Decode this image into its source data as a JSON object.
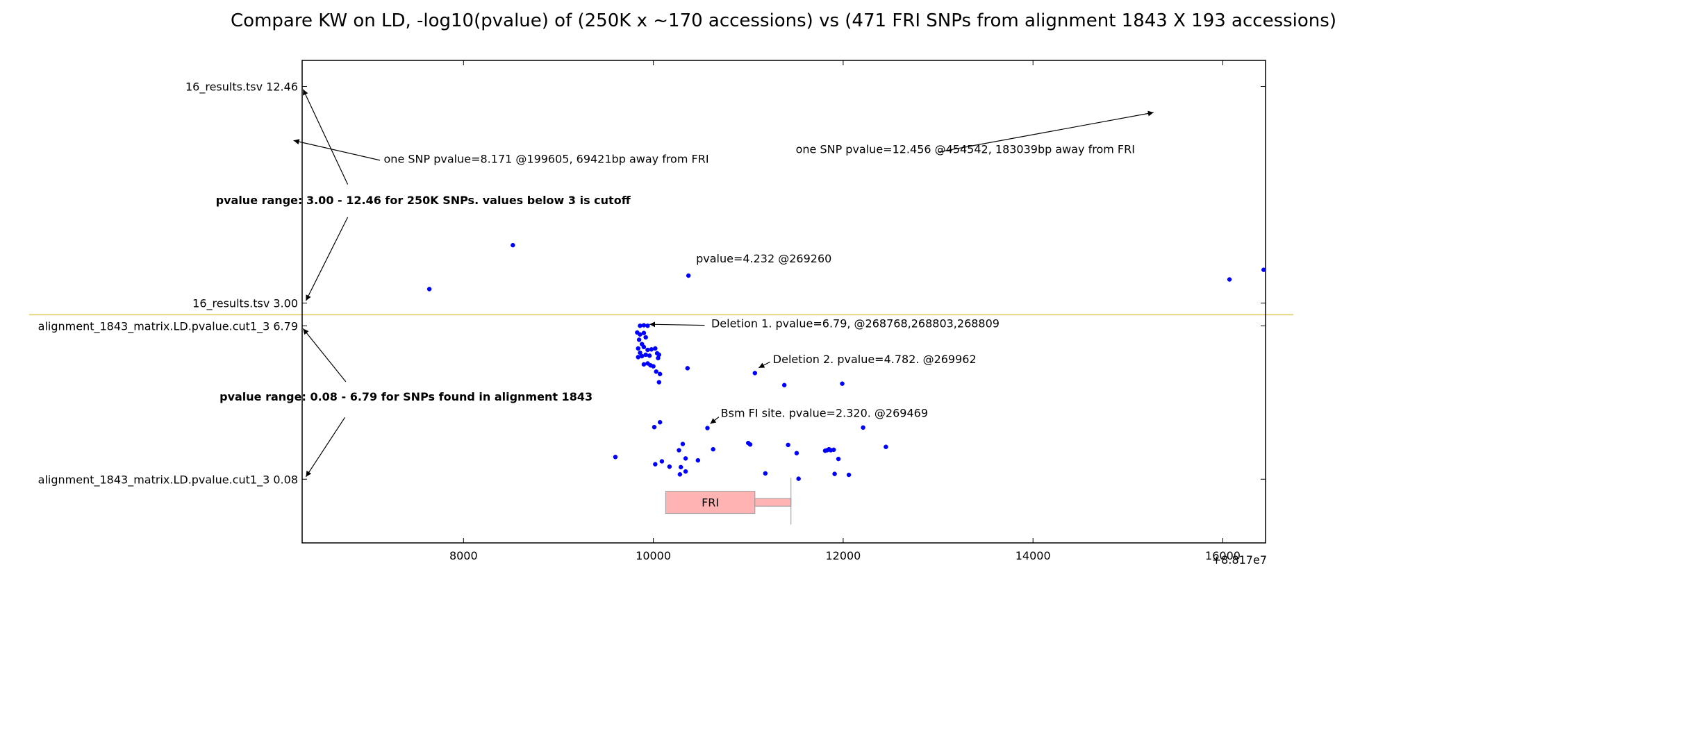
{
  "colors": {
    "points": "#0000ff",
    "separator": "#e6d87a",
    "gene_fill": "#ffb3b3",
    "gene_stroke": "#999999",
    "axes": "#000000"
  },
  "chart_data": {
    "type": "scatter",
    "title": "Compare KW on LD, -log10(pvalue) of (250K x ~170 accessions) vs (471 FRI SNPs from alignment 1843 X 193 accessions)",
    "xlabel": "",
    "ylabel": "",
    "x_offset_label": "+8.817e7",
    "xlim": [
      6300,
      16450
    ],
    "ylim": [
      0,
      100
    ],
    "x_ticks": [
      {
        "value": 8000,
        "label": "8000"
      },
      {
        "value": 10000,
        "label": "10000"
      },
      {
        "value": 12000,
        "label": "12000"
      },
      {
        "value": 14000,
        "label": "14000"
      },
      {
        "value": 16000,
        "label": "16000"
      }
    ],
    "y_ticks": [
      {
        "value": 94.6,
        "label": "16_results.tsv 12.46"
      },
      {
        "value": 49.7,
        "label": "16_results.tsv 3.00"
      },
      {
        "value": 45.0,
        "label": "alignment_1843_matrix.LD.pvalue.cut1_3 6.79"
      },
      {
        "value": 13.2,
        "label": "alignment_1843_matrix.LD.pvalue.cut1_3 0.08"
      }
    ],
    "separator_y": 47.3,
    "grid": false,
    "series": [
      {
        "points": [
          {
            "x": 7640,
            "y": 52.6
          },
          {
            "x": 8520,
            "y": 61.7
          },
          {
            "x": 10370,
            "y": 55.4
          },
          {
            "x": 16070,
            "y": 54.6
          },
          {
            "x": 16430,
            "y": 56.6
          },
          {
            "x": 9860,
            "y": 45.0
          },
          {
            "x": 9900,
            "y": 45.1
          },
          {
            "x": 9940,
            "y": 45.0
          },
          {
            "x": 9830,
            "y": 43.6
          },
          {
            "x": 9860,
            "y": 43.2
          },
          {
            "x": 9900,
            "y": 43.5
          },
          {
            "x": 9850,
            "y": 42.1
          },
          {
            "x": 9920,
            "y": 42.6
          },
          {
            "x": 9880,
            "y": 41.2
          },
          {
            "x": 9840,
            "y": 40.3
          },
          {
            "x": 9900,
            "y": 40.6
          },
          {
            "x": 9940,
            "y": 40.0
          },
          {
            "x": 9980,
            "y": 40.1
          },
          {
            "x": 10020,
            "y": 40.3
          },
          {
            "x": 9860,
            "y": 39.4
          },
          {
            "x": 9920,
            "y": 39.0
          },
          {
            "x": 9960,
            "y": 38.8
          },
          {
            "x": 10040,
            "y": 39.3
          },
          {
            "x": 10060,
            "y": 39.0
          },
          {
            "x": 9840,
            "y": 38.5
          },
          {
            "x": 9880,
            "y": 38.7
          },
          {
            "x": 10050,
            "y": 38.3
          },
          {
            "x": 9940,
            "y": 37.2
          },
          {
            "x": 9970,
            "y": 36.8
          },
          {
            "x": 9900,
            "y": 37.0
          },
          {
            "x": 10000,
            "y": 36.6
          },
          {
            "x": 10030,
            "y": 35.5
          },
          {
            "x": 10070,
            "y": 35.0
          },
          {
            "x": 10360,
            "y": 36.2
          },
          {
            "x": 10060,
            "y": 33.3
          },
          {
            "x": 11070,
            "y": 35.2
          },
          {
            "x": 11380,
            "y": 32.7
          },
          {
            "x": 11990,
            "y": 33.0
          },
          {
            "x": 10070,
            "y": 25.0
          },
          {
            "x": 10010,
            "y": 24.0
          },
          {
            "x": 10570,
            "y": 23.8
          },
          {
            "x": 12210,
            "y": 23.9
          },
          {
            "x": 11000,
            "y": 20.7
          },
          {
            "x": 11020,
            "y": 20.4
          },
          {
            "x": 11420,
            "y": 20.3
          },
          {
            "x": 12450,
            "y": 19.9
          },
          {
            "x": 10310,
            "y": 20.5
          },
          {
            "x": 10270,
            "y": 19.2
          },
          {
            "x": 10630,
            "y": 19.4
          },
          {
            "x": 11830,
            "y": 19.2
          },
          {
            "x": 11850,
            "y": 19.4
          },
          {
            "x": 11870,
            "y": 19.2
          },
          {
            "x": 11900,
            "y": 19.3
          },
          {
            "x": 11810,
            "y": 19.1
          },
          {
            "x": 11510,
            "y": 18.6
          },
          {
            "x": 9600,
            "y": 17.8
          },
          {
            "x": 10340,
            "y": 17.5
          },
          {
            "x": 10090,
            "y": 16.9
          },
          {
            "x": 10470,
            "y": 17.1
          },
          {
            "x": 11950,
            "y": 17.4
          },
          {
            "x": 10020,
            "y": 16.3
          },
          {
            "x": 10170,
            "y": 15.8
          },
          {
            "x": 10290,
            "y": 15.7
          },
          {
            "x": 10340,
            "y": 14.8
          },
          {
            "x": 10280,
            "y": 14.2
          },
          {
            "x": 11180,
            "y": 14.4
          },
          {
            "x": 11910,
            "y": 14.3
          },
          {
            "x": 12060,
            "y": 14.1
          },
          {
            "x": 11530,
            "y": 13.3
          }
        ]
      }
    ],
    "gene": {
      "label": "FRI",
      "box": {
        "x0": 10130,
        "x1": 11070,
        "y0": 6.1,
        "y1": 10.7
      },
      "tail": {
        "x0": 11070,
        "x1": 11450,
        "y0": 7.6,
        "y1": 9.2
      },
      "end_line": {
        "x": 11450,
        "y0": 3.8,
        "y1": 13.5
      }
    },
    "annotations": [
      {
        "text": "one SNP pvalue=8.171 @199605,  69421bp away from FRI",
        "x": 7160,
        "y": 78.8,
        "bold": false,
        "arrow_from": {
          "x": 7120,
          "y": 79.3
        },
        "arrow_to": {
          "x": 6210,
          "y": 83.4
        }
      },
      {
        "text": "one SNP pvalue=12.456 @454542, 183039bp away from FRI",
        "x": 11500,
        "y": 80.8,
        "bold": false,
        "arrow_from": {
          "x": 13000,
          "y": 81.0
        },
        "arrow_to": {
          "x": 15270,
          "y": 89.2
        }
      },
      {
        "text": "pvalue range: 3.00 - 12.46 for 250K SNPs. values below 3 is cutoff",
        "x": 5390,
        "y": 70.2,
        "bold": true
      },
      {
        "text": "pvalue=4.232 @269260",
        "x": 10450,
        "y": 58.1,
        "bold": false
      },
      {
        "text": "Deletion 1. pvalue=6.79, @268768,268803,268809",
        "x": 10610,
        "y": 44.7,
        "bold": false,
        "arrow_from": {
          "x": 10540,
          "y": 45.1
        },
        "arrow_to": {
          "x": 9960,
          "y": 45.3
        }
      },
      {
        "text": "Deletion 2. pvalue=4.782. @269962",
        "x": 11260,
        "y": 37.3,
        "bold": false,
        "arrow_from": {
          "x": 11230,
          "y": 37.5
        },
        "arrow_to": {
          "x": 11110,
          "y": 36.3
        }
      },
      {
        "text": "pvalue range: 0.08 - 6.79 for SNPs found in alignment 1843",
        "x": 5430,
        "y": 29.5,
        "bold": true
      },
      {
        "text": "Bsm FI site. pvalue=2.320. @269469",
        "x": 10710,
        "y": 26.1,
        "bold": false,
        "arrow_from": {
          "x": 10690,
          "y": 26.1
        },
        "arrow_to": {
          "x": 10600,
          "y": 24.7
        }
      }
    ],
    "range_arrows": [
      {
        "from": {
          "x": 6780,
          "y": 74.3
        },
        "to": {
          "x": 6310,
          "y": 94.0
        }
      },
      {
        "from": {
          "x": 6780,
          "y": 67.5
        },
        "to": {
          "x": 6340,
          "y": 50.2
        }
      },
      {
        "from": {
          "x": 6760,
          "y": 33.4
        },
        "to": {
          "x": 6310,
          "y": 44.4
        }
      },
      {
        "from": {
          "x": 6750,
          "y": 26.0
        },
        "to": {
          "x": 6340,
          "y": 13.7
        }
      }
    ]
  }
}
